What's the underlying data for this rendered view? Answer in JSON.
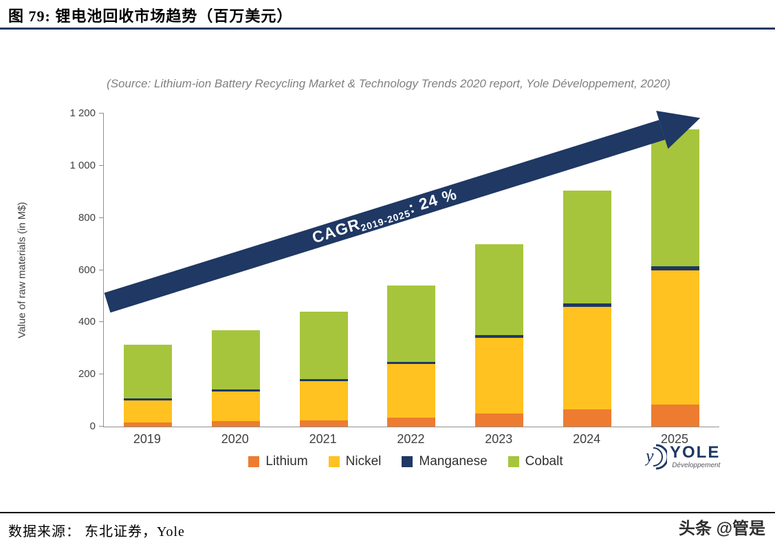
{
  "header": {
    "title": "图 79:  锂电池回收市场趋势（百万美元）"
  },
  "chart": {
    "source_caption": "(Source: Lithium-ion Battery Recycling Market & Technology Trends 2020 report, Yole Développement, 2020)",
    "arrow": {
      "label_prefix": "CAGR",
      "label_subscript": "2019-2025",
      "label_suffix": ": 24 %"
    }
  },
  "chart_data": {
    "type": "bar",
    "stacked": true,
    "title": "",
    "xlabel": "",
    "ylabel": "Value of raw materials (in M$)",
    "categories": [
      "2019",
      "2020",
      "2021",
      "2022",
      "2023",
      "2024",
      "2025"
    ],
    "series": [
      {
        "name": "Lithium",
        "color": "#ED7C31",
        "values": [
          15,
          20,
          25,
          35,
          50,
          65,
          85
        ]
      },
      {
        "name": "Nickel",
        "color": "#FFC220",
        "values": [
          85,
          115,
          150,
          205,
          290,
          395,
          515
        ]
      },
      {
        "name": "Manganese",
        "color": "#1F3864",
        "values": [
          7,
          7,
          8,
          8,
          10,
          12,
          15
        ]
      },
      {
        "name": "Cobalt",
        "color": "#A6C53C",
        "values": [
          208,
          228,
          257,
          292,
          350,
          433,
          525
        ]
      }
    ],
    "totals": [
      315,
      370,
      440,
      540,
      700,
      905,
      1140
    ],
    "ylim": [
      0,
      1200
    ],
    "yticks": [
      0,
      200,
      400,
      600,
      800,
      1000,
      1200
    ],
    "ytick_labels": [
      "0",
      "200",
      "400",
      "600",
      "800",
      "1 000",
      "1 200"
    ],
    "grid": false,
    "legend_position": "bottom",
    "annotation": "CAGR 2019-2025: 24 %"
  },
  "logo": {
    "brand": "YOLE",
    "tagline": "Développement"
  },
  "footer": {
    "source_label": "数据来源： 东北证券，Yole",
    "watermark": "头条 @管是"
  }
}
